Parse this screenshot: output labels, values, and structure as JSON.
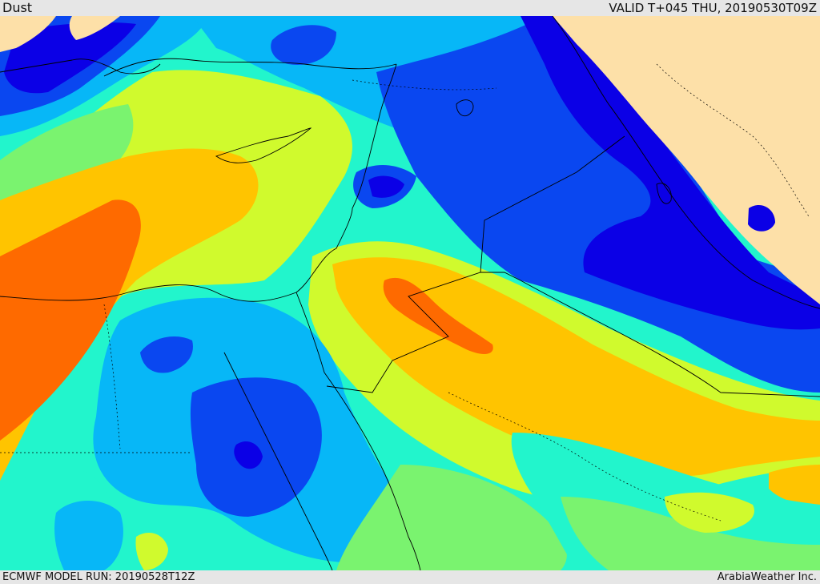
{
  "header": {
    "title": "Dust",
    "valid_time": "VALID T+045 THU, 20190530T09Z"
  },
  "footer": {
    "model_run": "ECMWF MODEL RUN: 20190528T12Z",
    "credit": "ArabiaWeather Inc."
  },
  "palette": {
    "land_no_data": "#fde0a8",
    "level_1": "#0b00e6",
    "level_2": "#0a47f0",
    "level_3": "#07b7f7",
    "level_4": "#22f5cc",
    "level_5": "#7af36f",
    "level_6": "#d0fa2d",
    "level_7": "#ffc400",
    "level_8": "#fe6a00",
    "border_color": "#000000"
  }
}
